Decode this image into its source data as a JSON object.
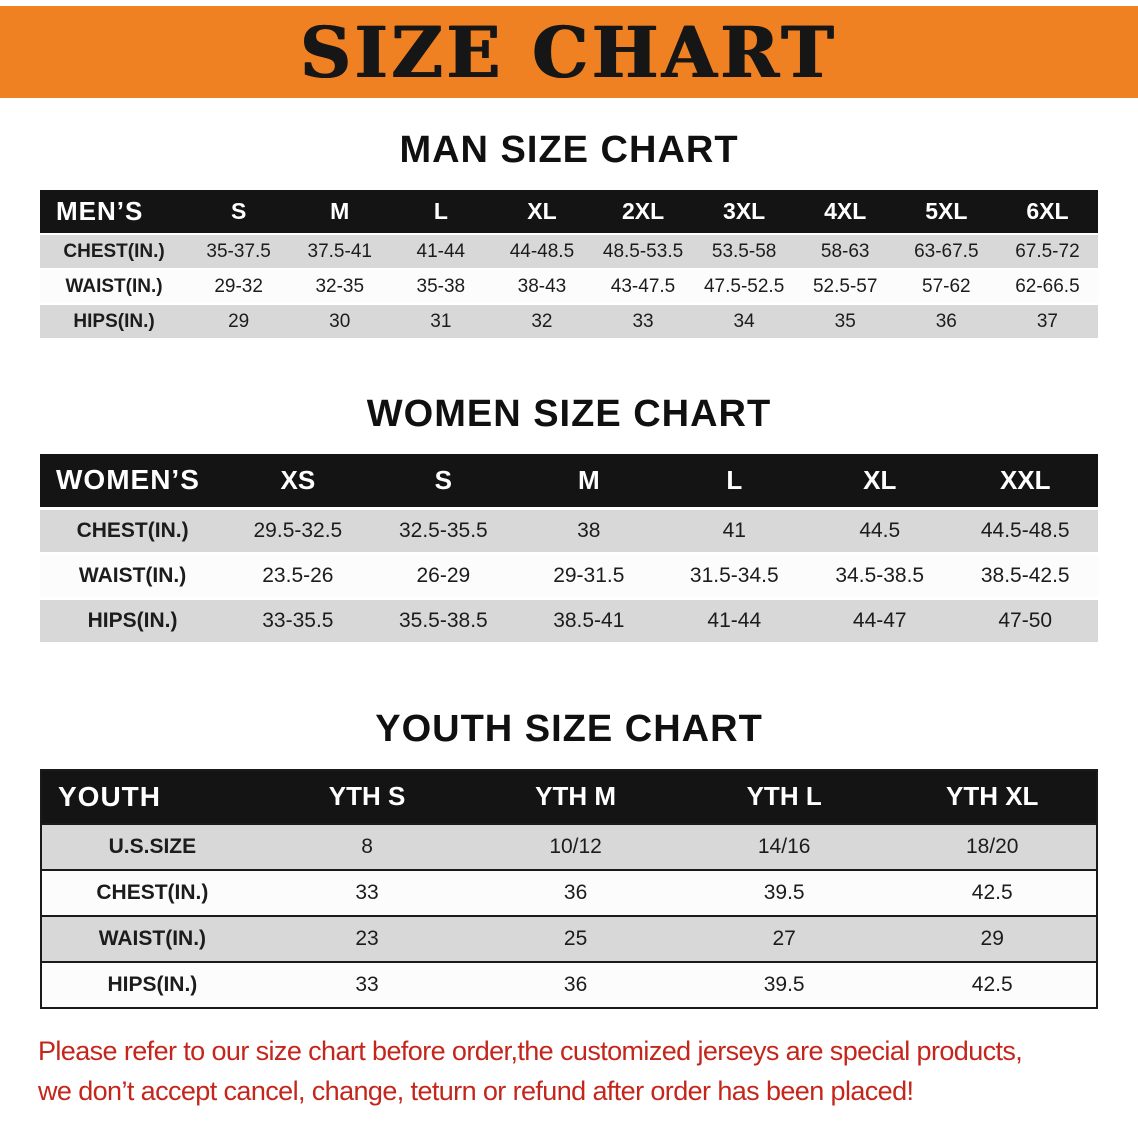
{
  "banner": {
    "title": "SIZE CHART"
  },
  "colors": {
    "banner_bg": "#f08122",
    "banner_text": "#161616",
    "table_header_bg": "#141414",
    "table_header_text": "#ffffff",
    "row_shade": "#d8d8d8",
    "disclaimer_text": "#c4261c"
  },
  "sections": [
    {
      "heading": "MAN SIZE CHART",
      "table": {
        "header_label": "MEN’S",
        "sizes": [
          "S",
          "M",
          "L",
          "XL",
          "2XL",
          "3XL",
          "4XL",
          "5XL",
          "6XL"
        ],
        "rows": [
          {
            "label": "CHEST(IN.)",
            "values": [
              "35-37.5",
              "37.5-41",
              "41-44",
              "44-48.5",
              "48.5-53.5",
              "53.5-58",
              "58-63",
              "63-67.5",
              "67.5-72"
            ]
          },
          {
            "label": "WAIST(IN.)",
            "values": [
              "29-32",
              "32-35",
              "35-38",
              "38-43",
              "43-47.5",
              "47.5-52.5",
              "52.5-57",
              "57-62",
              "62-66.5"
            ]
          },
          {
            "label": "HIPS(IN.)",
            "values": [
              "29",
              "30",
              "31",
              "32",
              "33",
              "34",
              "35",
              "36",
              "37"
            ]
          }
        ]
      }
    },
    {
      "heading": "WOMEN SIZE CHART",
      "table": {
        "header_label": "WOMEN’S",
        "sizes": [
          "XS",
          "S",
          "M",
          "L",
          "XL",
          "XXL"
        ],
        "rows": [
          {
            "label": "CHEST(IN.)",
            "values": [
              "29.5-32.5",
              "32.5-35.5",
              "38",
              "41",
              "44.5",
              "44.5-48.5"
            ]
          },
          {
            "label": "WAIST(IN.)",
            "values": [
              "23.5-26",
              "26-29",
              "29-31.5",
              "31.5-34.5",
              "34.5-38.5",
              "38.5-42.5"
            ]
          },
          {
            "label": "HIPS(IN.)",
            "values": [
              "33-35.5",
              "35.5-38.5",
              "38.5-41",
              "41-44",
              "44-47",
              "47-50"
            ]
          }
        ]
      }
    },
    {
      "heading": "YOUTH SIZE CHART",
      "table": {
        "header_label": "YOUTH",
        "sizes": [
          "YTH S",
          "YTH M",
          "YTH L",
          "YTH XL"
        ],
        "rows": [
          {
            "label": "U.S.SIZE",
            "values": [
              "8",
              "10/12",
              "14/16",
              "18/20"
            ]
          },
          {
            "label": "CHEST(IN.)",
            "values": [
              "33",
              "36",
              "39.5",
              "42.5"
            ]
          },
          {
            "label": "WAIST(IN.)",
            "values": [
              "23",
              "25",
              "27",
              "29"
            ]
          },
          {
            "label": "HIPS(IN.)",
            "values": [
              "33",
              "36",
              "39.5",
              "42.5"
            ]
          }
        ]
      }
    }
  ],
  "disclaimer": {
    "line1": "Please refer to our size chart before order,the customized jerseys are special products,",
    "line2": "we don’t accept cancel, change, teturn or refund after order has been placed!"
  }
}
